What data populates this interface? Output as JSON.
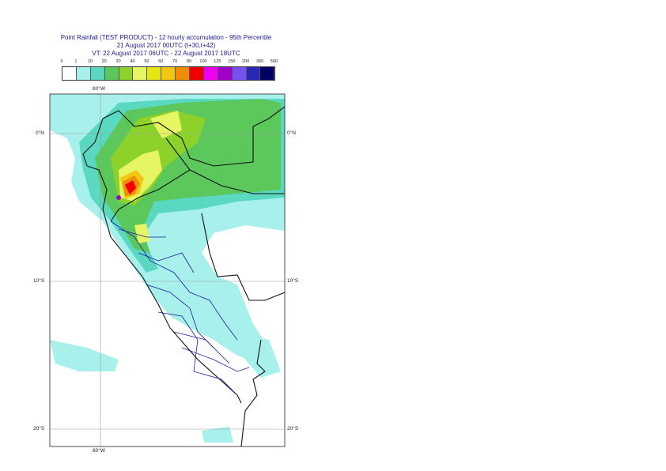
{
  "header": {
    "title": "Point Rainfall (TEST PRODUCT) - 12 hourly accumulation - 95th Percentile",
    "base_time": "21 August 2017 00UTC (t+30,t+42)",
    "valid_time": "VT: 22 August 2017 06UTC - 22 August 2017 18UTC"
  },
  "legend": {
    "ticks": [
      "0",
      "1",
      "10",
      "20",
      "30",
      "40",
      "50",
      "60",
      "70",
      "80",
      "100",
      "125",
      "150",
      "200",
      "300",
      "500"
    ],
    "colors": [
      "#ffffff",
      "#a8f0ec",
      "#5ad8c0",
      "#5cc85c",
      "#8cd22a",
      "#e6f564",
      "#e6e614",
      "#f0c814",
      "#f08c0a",
      "#f00000",
      "#f000f0",
      "#a000c8",
      "#7850f0",
      "#2828b4",
      "#000064"
    ]
  },
  "map": {
    "lon_label_top": "80°W",
    "lon_label_bottom": "80°W",
    "lat_labels": [
      "0°N",
      "10°S",
      "20°S"
    ]
  }
}
